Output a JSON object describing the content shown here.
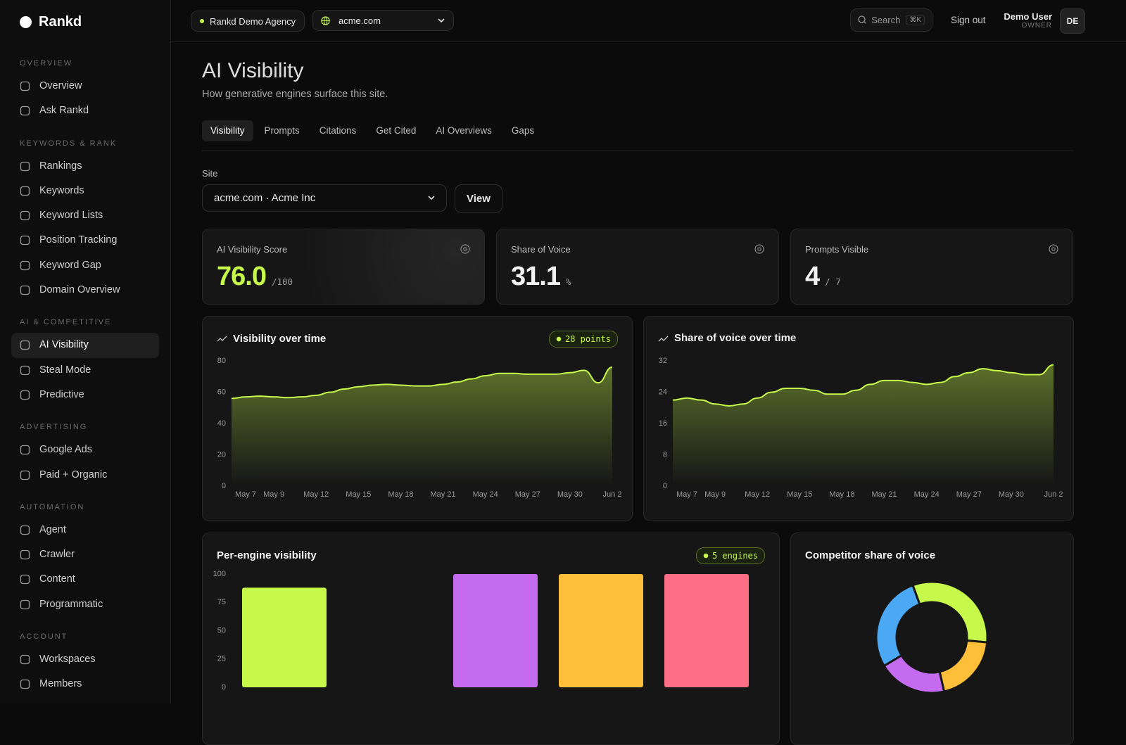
{
  "brand": "Rankd",
  "sidebar": {
    "active": "AI Visibility",
    "sections": [
      {
        "title": "OVERVIEW",
        "items": [
          "Overview",
          "Ask Rankd"
        ]
      },
      {
        "title": "KEYWORDS & RANK",
        "items": [
          "Rankings",
          "Keywords",
          "Keyword Lists",
          "Position Tracking",
          "Keyword Gap",
          "Domain Overview"
        ]
      },
      {
        "title": "AI & COMPETITIVE",
        "items": [
          "AI Visibility",
          "Steal Mode",
          "Predictive"
        ]
      },
      {
        "title": "ADVERTISING",
        "items": [
          "Google Ads",
          "Paid + Organic"
        ]
      },
      {
        "title": "AUTOMATION",
        "items": [
          "Agent",
          "Crawler",
          "Content",
          "Programmatic"
        ]
      },
      {
        "title": "ACCOUNT",
        "items": [
          "Workspaces",
          "Members"
        ]
      }
    ]
  },
  "topbar": {
    "agency": "Rankd Demo Agency",
    "domain": "acme.com",
    "search": "Search",
    "shortcut": "⌘K",
    "signout": "Sign out",
    "user": "Demo User",
    "role": "OWNER",
    "initials": "DE"
  },
  "header": {
    "title": "AI Visibility",
    "subtitle": "How generative engines surface this site."
  },
  "tabs": {
    "active": 0,
    "items": [
      "Visibility",
      "Prompts",
      "Citations",
      "Get Cited",
      "AI Overviews",
      "Gaps"
    ]
  },
  "site": {
    "label": "Site",
    "value": "acme.com · Acme Inc",
    "button": "View"
  },
  "stats": [
    {
      "label": "AI Visibility Score",
      "value": "76.0",
      "unit": "/100",
      "color": "#c6f94a"
    },
    {
      "label": "Share of Voice",
      "value": "31.1",
      "unit": "%",
      "color": "#f2f2f2"
    },
    {
      "label": "Prompts Visible",
      "value": "4",
      "unit": "/ 7",
      "color": "#f2f2f2"
    }
  ],
  "charts": [
    {
      "type": "line",
      "title": "Visibility over time",
      "badge": "28 points",
      "color": "#c6f94a",
      "categories": [
        null,
        "May 7",
        null,
        "May 9",
        null,
        null,
        "May 12",
        null,
        null,
        "May 15",
        null,
        null,
        "May 18",
        null,
        null,
        "May 21",
        null,
        null,
        "May 24",
        null,
        null,
        "May 27",
        null,
        null,
        "May 30",
        null,
        null,
        "Jun 2"
      ],
      "values": [
        56,
        57,
        57.5,
        57,
        56.5,
        57,
        58,
        60,
        62,
        63.5,
        64.5,
        65,
        64.5,
        64,
        64,
        65,
        66.5,
        68.5,
        70.5,
        72,
        72,
        71.5,
        71.5,
        71.5,
        72.5,
        74,
        66,
        76
      ],
      "ylim": [
        0,
        80
      ],
      "yticks": [
        0,
        20,
        40,
        60,
        80
      ]
    },
    {
      "type": "line",
      "title": "Share of voice over time",
      "color": "#c6f94a",
      "categories": [
        null,
        "May 7",
        null,
        "May 9",
        null,
        null,
        "May 12",
        null,
        null,
        "May 15",
        null,
        null,
        "May 18",
        null,
        null,
        "May 21",
        null,
        null,
        "May 24",
        null,
        null,
        "May 27",
        null,
        null,
        "May 30",
        null,
        null,
        "Jun 2"
      ],
      "values": [
        22,
        22.5,
        22,
        21,
        20.5,
        21,
        22.5,
        24,
        25,
        25,
        24.5,
        23.5,
        23.5,
        24.5,
        26,
        27,
        27,
        26.5,
        26,
        26.5,
        28,
        29,
        30,
        29.5,
        29,
        28.5,
        28.5,
        31
      ],
      "ylim": [
        0,
        32
      ],
      "yticks": [
        0,
        8,
        16,
        24,
        32
      ]
    },
    {
      "type": "bar",
      "title": "Per-engine visibility",
      "badge": "5 engines",
      "categories": [
        null,
        null,
        null,
        null,
        null
      ],
      "values": [
        88,
        0,
        100,
        100,
        100
      ],
      "colors": [
        "#c6f94a",
        "#4aa8f5",
        "#c46bef",
        "#fdbf3a",
        "#fe6f85"
      ],
      "ylim": [
        0,
        100
      ],
      "yticks": [
        0,
        25,
        50,
        75,
        100
      ]
    },
    {
      "type": "pie",
      "title": "Competitor share of voice",
      "values": [
        32,
        20,
        20,
        28
      ],
      "colors": [
        "#c6f94a",
        "#fdbf3a",
        "#c46bef",
        "#4aa8f5"
      ]
    }
  ]
}
